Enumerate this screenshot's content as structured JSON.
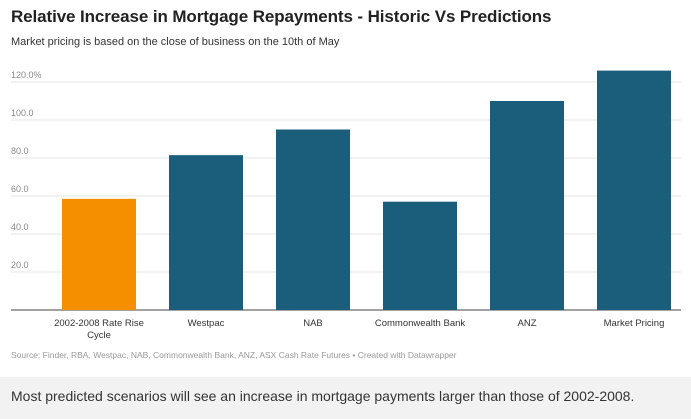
{
  "chart_data": {
    "type": "bar",
    "title": "Relative Increase in Mortgage Repayments - Historic Vs Predictions",
    "subtitle": "Market pricing is based on the close of business on the 10th of May",
    "categories": [
      [
        "2002-2008 Rate Rise",
        "Cycle"
      ],
      [
        "Westpac"
      ],
      [
        "NAB"
      ],
      [
        "Commonwealth Bank"
      ],
      [
        "ANZ"
      ],
      [
        "Market Pricing"
      ]
    ],
    "values": [
      58.5,
      81.5,
      95,
      57,
      110,
      126
    ],
    "bar_colors": [
      "#f58f00",
      "#1a5e7b",
      "#1a5e7b",
      "#1a5e7b",
      "#1a5e7b",
      "#1a5e7b"
    ],
    "yticks": [
      20,
      40,
      60,
      80,
      100,
      120
    ],
    "ytick_labels": [
      "20.0",
      "40.0",
      "60.0",
      "80.0",
      "100.0",
      "120.0%"
    ],
    "ylim": [
      0,
      130
    ],
    "grid": true,
    "source": "Source: Finder, RBA, Westpac, NAB, Commonwealth Bank, ANZ, ASX Cash Rate Futures • Created with Datawrapper"
  },
  "caption": "Most predicted scenarios will see an increase in mortgage payments larger than those of 2002-2008."
}
